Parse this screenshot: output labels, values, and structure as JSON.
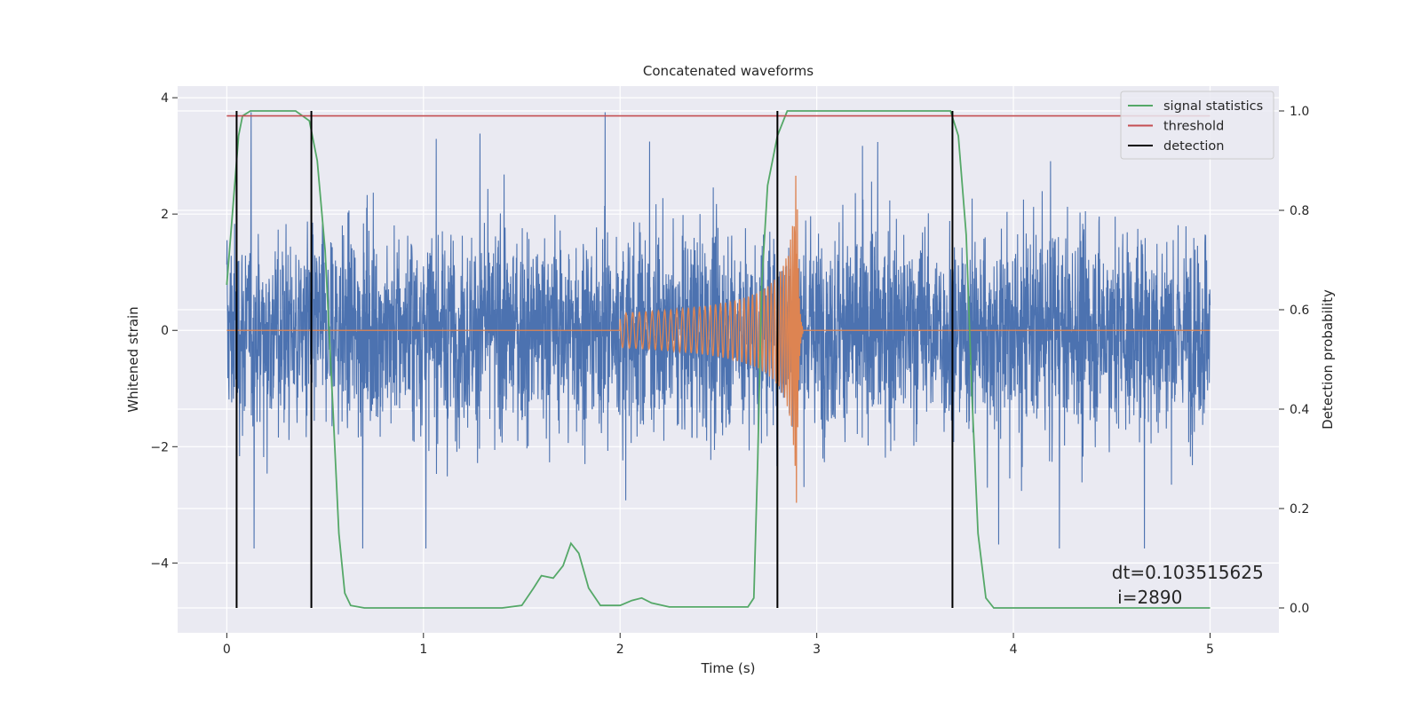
{
  "chart_data": {
    "type": "line",
    "title": "Concatenated waveforms",
    "xlabel": "Time (s)",
    "ylabel_left": "Whitened strain",
    "ylabel_right": "Detection probability",
    "xlim": [
      -0.25,
      5.35
    ],
    "ylim_left": [
      -5.2,
      4.2
    ],
    "ylim_right": [
      -0.05,
      1.05
    ],
    "x_ticks": [
      0,
      1,
      2,
      3,
      4,
      5
    ],
    "y_ticks_left": [
      -4,
      -2,
      0,
      2,
      4
    ],
    "y_ticks_right": [
      0.0,
      0.2,
      0.4,
      0.6,
      0.8,
      1.0
    ],
    "y_tick_labels_left": [
      "−4",
      "−2",
      "0",
      "2",
      "4"
    ],
    "y_tick_labels_right": [
      "0.0",
      "0.2",
      "0.4",
      "0.6",
      "0.8",
      "1.0"
    ],
    "grid": true,
    "legend_position": "top-right",
    "legend": [
      "signal statistics",
      "threshold",
      "detection"
    ],
    "series": [
      {
        "name": "",
        "axis": "left",
        "color": "#4c72b0",
        "description_kind": "noise",
        "x_range": [
          0,
          5
        ],
        "typical_amplitude": 1.5,
        "peak_max": 3.75,
        "peak_min": -3.75
      },
      {
        "name": "",
        "axis": "left",
        "color": "#dd8452",
        "description_kind": "chirp",
        "x_range": [
          0,
          5
        ],
        "chirp_start": 2.0,
        "merger": 2.9,
        "peak_max": 3.2,
        "peak_min": -3.5
      },
      {
        "name": "signal statistics",
        "axis": "right",
        "color": "#55a868",
        "points": [
          [
            0.0,
            0.65
          ],
          [
            0.03,
            0.8
          ],
          [
            0.06,
            0.95
          ],
          [
            0.08,
            0.99
          ],
          [
            0.12,
            1.0
          ],
          [
            0.35,
            1.0
          ],
          [
            0.42,
            0.98
          ],
          [
            0.46,
            0.9
          ],
          [
            0.5,
            0.72
          ],
          [
            0.54,
            0.4
          ],
          [
            0.57,
            0.15
          ],
          [
            0.6,
            0.03
          ],
          [
            0.63,
            0.005
          ],
          [
            0.7,
            0.0
          ],
          [
            1.4,
            0.0
          ],
          [
            1.5,
            0.005
          ],
          [
            1.56,
            0.04
          ],
          [
            1.6,
            0.065
          ],
          [
            1.66,
            0.06
          ],
          [
            1.71,
            0.085
          ],
          [
            1.75,
            0.13
          ],
          [
            1.79,
            0.11
          ],
          [
            1.84,
            0.04
          ],
          [
            1.9,
            0.005
          ],
          [
            2.0,
            0.005
          ],
          [
            2.06,
            0.015
          ],
          [
            2.11,
            0.02
          ],
          [
            2.16,
            0.01
          ],
          [
            2.25,
            0.002
          ],
          [
            2.65,
            0.002
          ],
          [
            2.68,
            0.02
          ],
          [
            2.7,
            0.3
          ],
          [
            2.72,
            0.65
          ],
          [
            2.75,
            0.85
          ],
          [
            2.8,
            0.95
          ],
          [
            2.85,
            1.0
          ],
          [
            3.68,
            1.0
          ],
          [
            3.72,
            0.95
          ],
          [
            3.76,
            0.75
          ],
          [
            3.79,
            0.42
          ],
          [
            3.82,
            0.15
          ],
          [
            3.86,
            0.02
          ],
          [
            3.9,
            0.0
          ],
          [
            5.0,
            0.0
          ]
        ]
      },
      {
        "name": "threshold",
        "axis": "right",
        "color": "#c44e52",
        "x": [
          0,
          5
        ],
        "y": [
          0.99,
          0.99
        ]
      }
    ],
    "detections": {
      "name": "detection",
      "color": "#000000",
      "x": [
        0.05,
        0.43,
        2.8,
        3.69
      ]
    },
    "annotation": {
      "line1": "dt=0.103515625",
      "line2": " i=2890",
      "x": 4.5,
      "y": -4.3
    }
  }
}
